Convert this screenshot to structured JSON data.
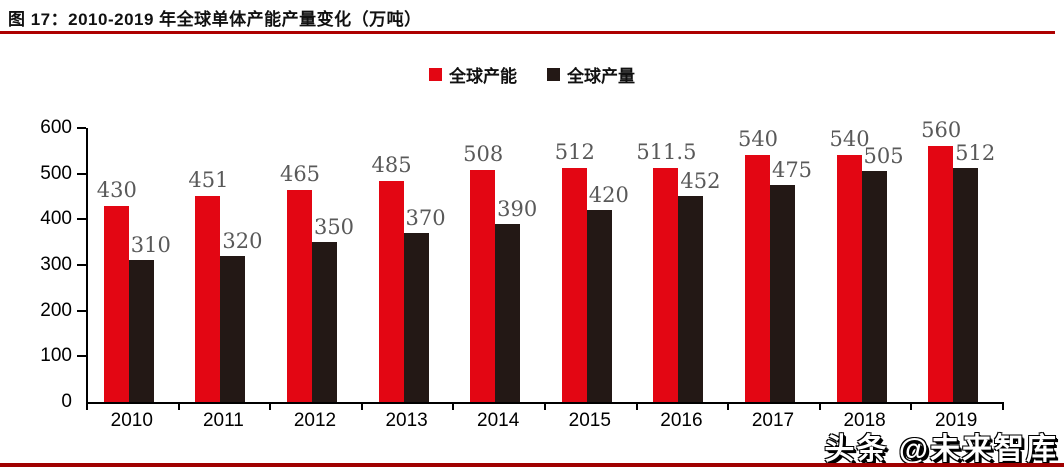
{
  "figure": {
    "title": "图 17：2010-2019 年全球单体产能产量变化（万吨）",
    "watermark": "头条 @未来智库"
  },
  "colors": {
    "capacity_bar": "#e30613",
    "output_bar": "#231815",
    "title_rule": "#ad0000",
    "bottom_rule": "#a00000",
    "value_label": "#595959",
    "axis": "#000000"
  },
  "chart_data": {
    "type": "bar",
    "title": "2010-2019 年全球单体产能产量变化（万吨）",
    "categories": [
      "2010",
      "2011",
      "2012",
      "2013",
      "2014",
      "2015",
      "2016",
      "2017",
      "2018",
      "2019"
    ],
    "series": [
      {
        "name": "全球产能",
        "color": "#e30613",
        "values": [
          430,
          451,
          465,
          485,
          508,
          512,
          511.5,
          540,
          540,
          560
        ]
      },
      {
        "name": "全球产量",
        "color": "#231815",
        "values": [
          310,
          320,
          350,
          370,
          390,
          420,
          452,
          475,
          505,
          512
        ]
      }
    ],
    "xlabel": "",
    "ylabel": "",
    "ylim": [
      0,
      600
    ],
    "yticks": [
      0,
      100,
      200,
      300,
      400,
      500,
      600
    ],
    "grid": false,
    "legend_position": "top-center",
    "data_labels": true
  }
}
